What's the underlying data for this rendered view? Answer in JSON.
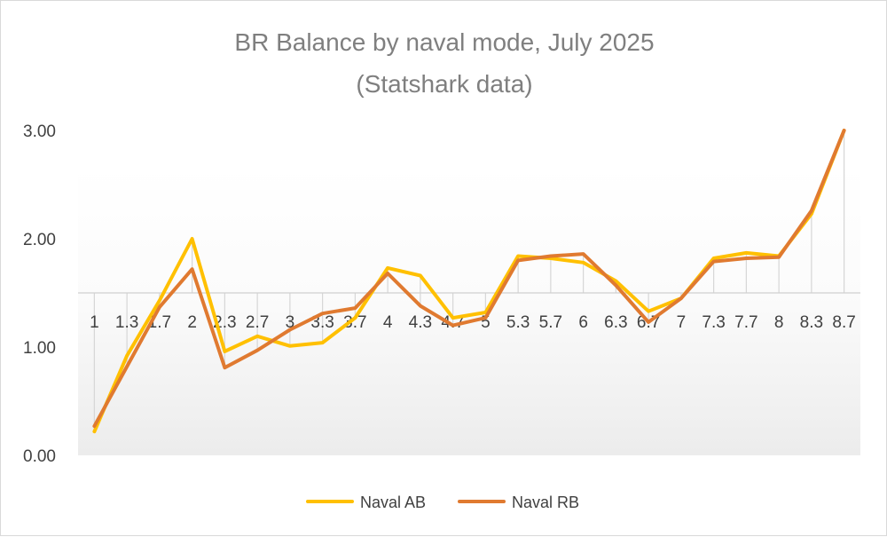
{
  "chart_data": {
    "type": "line",
    "title": "BR Balance by naval mode, July 2025",
    "subtitle": "(Statshark data)",
    "categories": [
      "1",
      "1.3",
      "1.7",
      "2",
      "2.3",
      "2.7",
      "3",
      "3.3",
      "3.7",
      "4",
      "4.3",
      "4.7",
      "5",
      "5.3",
      "5.7",
      "6",
      "6.3",
      "6.7",
      "7",
      "7.3",
      "7.7",
      "8",
      "8.3",
      "8.7"
    ],
    "series": [
      {
        "name": "Naval AB",
        "color": "#ffc000",
        "values": [
          0.22,
          0.92,
          1.43,
          2.0,
          0.96,
          1.1,
          1.01,
          1.04,
          1.27,
          1.73,
          1.66,
          1.27,
          1.32,
          1.84,
          1.82,
          1.78,
          1.61,
          1.33,
          1.45,
          1.82,
          1.87,
          1.84,
          2.23,
          3.0
        ]
      },
      {
        "name": "Naval RB",
        "color": "#e07a30",
        "values": [
          0.27,
          0.82,
          1.37,
          1.72,
          0.81,
          0.97,
          1.16,
          1.31,
          1.36,
          1.68,
          1.38,
          1.2,
          1.27,
          1.8,
          1.84,
          1.86,
          1.57,
          1.23,
          1.45,
          1.79,
          1.82,
          1.83,
          2.26,
          3.0
        ]
      }
    ],
    "yticks": [
      "0.00",
      "1.00",
      "2.00",
      "3.00"
    ],
    "ylim": [
      0,
      3
    ],
    "x_axis_crosses_at": 1.5,
    "grid": false,
    "drop_lines": true,
    "legend_position": "bottom",
    "xlabel": "",
    "ylabel": ""
  }
}
